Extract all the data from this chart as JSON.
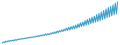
{
  "line_color": "#3a9fd1",
  "background_color": "#ffffff",
  "linewidth": 0.8,
  "y_values": [
    1.0,
    1.3,
    1.1,
    1.5,
    1.3,
    1.6,
    1.4,
    1.7,
    1.5,
    1.8,
    1.6,
    1.9,
    1.7,
    2.0,
    1.9,
    2.1,
    2.0,
    2.2,
    2.1,
    2.3,
    2.2,
    2.4,
    2.3,
    2.5,
    2.4,
    2.6,
    2.5,
    2.7,
    2.6,
    2.8,
    2.7,
    3.0,
    2.8,
    3.1,
    2.9,
    3.2,
    3.0,
    3.4,
    3.1,
    3.5,
    3.2,
    3.6,
    3.4,
    3.8,
    3.5,
    4.0,
    3.6,
    4.2,
    3.8,
    4.3,
    4.0,
    4.5,
    4.1,
    4.7,
    4.3,
    5.0,
    4.4,
    5.2,
    4.5,
    5.4,
    4.7,
    5.6,
    4.8,
    5.8,
    5.0,
    6.1,
    5.2,
    6.4,
    5.4,
    6.6,
    5.6,
    7.0,
    5.8,
    7.3,
    6.0,
    7.6,
    6.2,
    7.9,
    6.4,
    8.2,
    6.6,
    8.6,
    6.8,
    8.9,
    7.0,
    9.3,
    7.3,
    9.7,
    7.5,
    10.1,
    7.8,
    10.5,
    8.0,
    10.8,
    8.3,
    11.2,
    8.6,
    11.7,
    8.8,
    12.0
  ]
}
